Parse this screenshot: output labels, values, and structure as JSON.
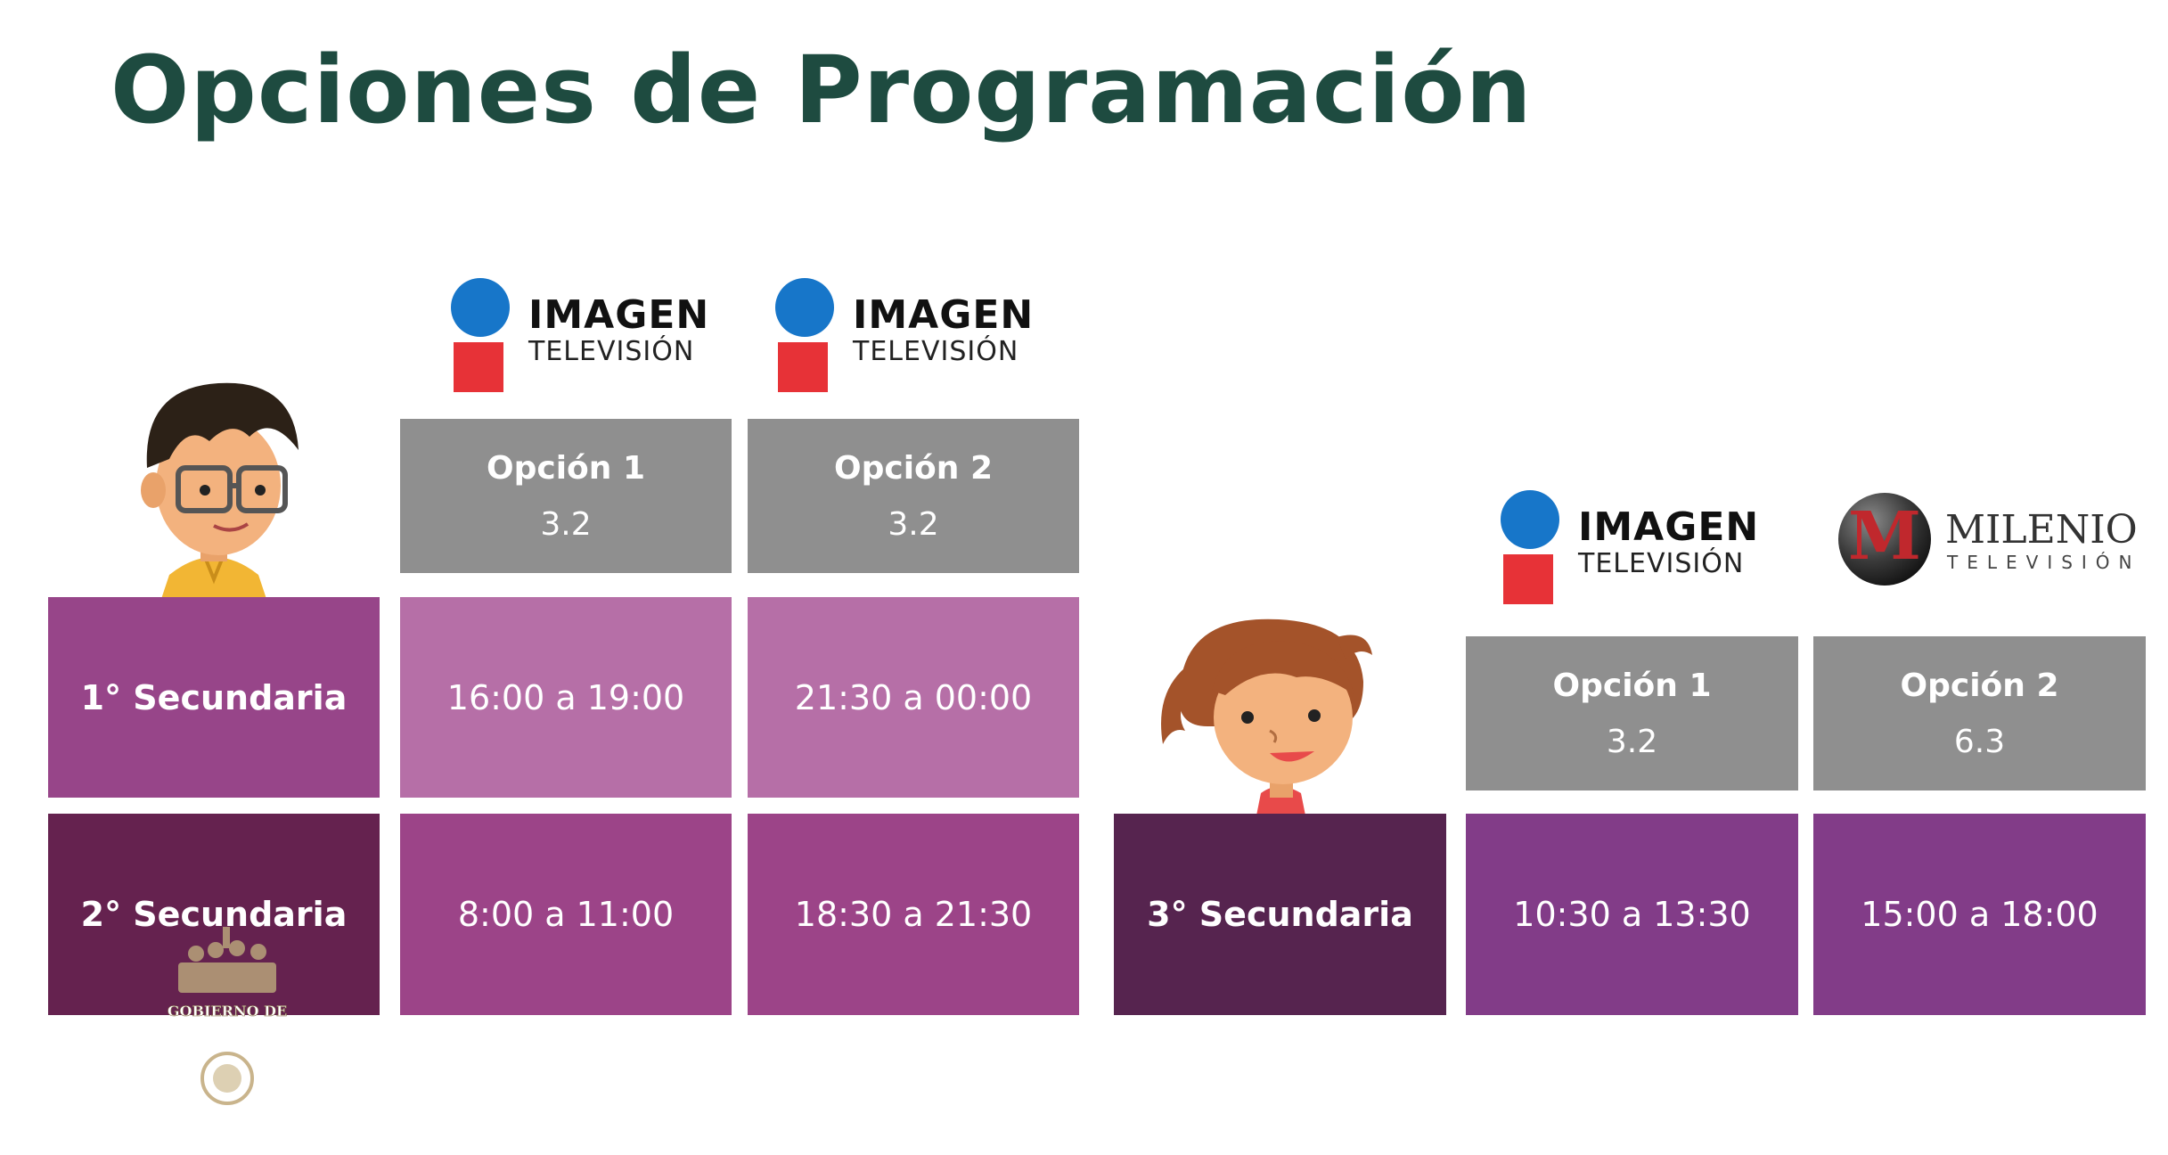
{
  "title": "Opciones de Programación",
  "logos": {
    "imagen": {
      "line1": "IMAGEN",
      "line2": "TELEVISIÓN"
    },
    "milenio": {
      "line1": "MILENIO",
      "line2": "TELEVISIÓN",
      "mark": "M"
    }
  },
  "table_left": {
    "headers": [
      {
        "option": "Opción 1",
        "channel": "3.2"
      },
      {
        "option": "Opción 2",
        "channel": "3.2"
      }
    ],
    "rows": [
      {
        "label": "1° Secundaria",
        "times": [
          "16:00 a 19:00",
          "21:30 a 00:00"
        ]
      },
      {
        "label": "2° Secundaria",
        "times": [
          "8:00 a 11:00",
          "18:30 a 21:30"
        ]
      }
    ]
  },
  "table_right": {
    "headers": [
      {
        "option": "Opción 1",
        "channel": "3.2"
      },
      {
        "option": "Opción 2",
        "channel": "6.3"
      }
    ],
    "rows": [
      {
        "label": "3° Secundaria",
        "times": [
          "10:30 a 13:30",
          "15:00 a 18:00"
        ]
      }
    ]
  },
  "watermark": {
    "text": "GOBIERNO DE"
  },
  "colors": {
    "title": "#1e4b40",
    "header_gray": "#8f8f8f",
    "row1_label": "#974589",
    "row1_value": "#b66fa7",
    "row2_label": "#65224f",
    "row2_value": "#9c4488",
    "row3_label": "#56244f",
    "row3_value": "#823c88",
    "imagen_blue": "#1776c9",
    "imagen_red": "#e73237"
  }
}
